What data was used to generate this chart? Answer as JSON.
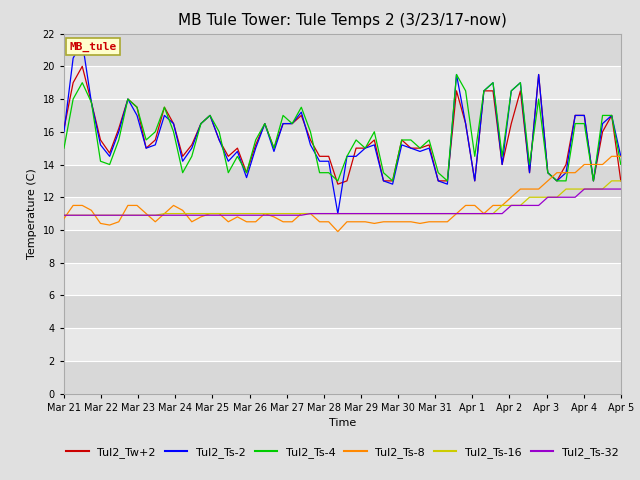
{
  "title": "MB Tule Tower: Tule Temps 2 (3/23/17-now)",
  "ylabel": "Temperature (C)",
  "xlabel": "Time",
  "ylim": [
    0,
    22
  ],
  "yticks": [
    0,
    2,
    4,
    6,
    8,
    10,
    12,
    14,
    16,
    18,
    20,
    22
  ],
  "bg_color": "#e0e0e0",
  "plot_bg_color": "#f2f2f2",
  "band_color_dark": "#d8d8d8",
  "band_color_light": "#e8e8e8",
  "series": {
    "Tul2_Tw+2": {
      "color": "#cc0000",
      "lw": 0.9,
      "values": [
        16.2,
        19.0,
        20.0,
        17.8,
        15.5,
        14.7,
        16.2,
        18.0,
        17.5,
        15.0,
        15.5,
        17.5,
        16.5,
        14.5,
        15.2,
        16.5,
        17.0,
        15.5,
        14.5,
        15.0,
        13.5,
        15.2,
        16.5,
        15.0,
        16.5,
        16.5,
        17.0,
        15.5,
        14.5,
        14.5,
        12.8,
        13.0,
        15.0,
        15.0,
        15.5,
        13.0,
        13.0,
        15.5,
        15.0,
        15.0,
        15.2,
        13.0,
        13.0,
        18.5,
        16.5,
        13.0,
        18.5,
        18.5,
        14.0,
        16.5,
        18.5,
        13.5,
        19.5,
        13.5,
        13.0,
        14.0,
        17.0,
        17.0,
        13.0,
        16.0,
        17.0,
        13.0
      ]
    },
    "Tul2_Ts-2": {
      "color": "#0000ff",
      "lw": 0.9,
      "values": [
        16.0,
        20.5,
        21.5,
        17.8,
        15.2,
        14.5,
        16.0,
        18.0,
        17.0,
        15.0,
        15.2,
        17.0,
        16.5,
        14.2,
        15.0,
        16.5,
        17.0,
        15.5,
        14.2,
        14.8,
        13.2,
        15.0,
        16.5,
        14.8,
        16.5,
        16.5,
        17.2,
        15.2,
        14.2,
        14.2,
        11.0,
        14.5,
        14.5,
        15.0,
        15.2,
        13.0,
        12.8,
        15.2,
        15.0,
        14.8,
        15.0,
        13.0,
        12.8,
        19.5,
        16.5,
        13.0,
        18.5,
        19.0,
        14.0,
        18.5,
        19.0,
        13.5,
        19.5,
        13.5,
        13.0,
        13.5,
        17.0,
        17.0,
        13.0,
        16.5,
        17.0,
        14.5
      ]
    },
    "Tul2_Ts-4": {
      "color": "#00cc00",
      "lw": 0.9,
      "values": [
        15.0,
        18.0,
        19.0,
        17.8,
        14.2,
        14.0,
        15.5,
        18.0,
        17.5,
        15.5,
        16.0,
        17.5,
        16.0,
        13.5,
        14.5,
        16.5,
        17.0,
        16.0,
        13.5,
        14.5,
        13.5,
        15.5,
        16.5,
        15.0,
        17.0,
        16.5,
        17.5,
        16.0,
        13.5,
        13.5,
        13.0,
        14.5,
        15.5,
        15.0,
        16.0,
        13.5,
        13.0,
        15.5,
        15.5,
        15.0,
        15.5,
        13.5,
        13.0,
        19.5,
        18.5,
        14.5,
        18.5,
        19.0,
        14.5,
        18.5,
        19.0,
        14.0,
        18.0,
        13.5,
        13.0,
        13.0,
        16.5,
        16.5,
        13.0,
        17.0,
        17.0,
        14.0
      ]
    },
    "Tul2_Ts-8": {
      "color": "#ff8800",
      "lw": 0.9,
      "values": [
        10.7,
        11.5,
        11.5,
        11.2,
        10.4,
        10.3,
        10.5,
        11.5,
        11.5,
        11.0,
        10.5,
        11.0,
        11.5,
        11.2,
        10.5,
        10.8,
        11.0,
        11.0,
        10.5,
        10.8,
        10.5,
        10.5,
        11.0,
        10.8,
        10.5,
        10.5,
        11.0,
        11.0,
        10.5,
        10.5,
        9.9,
        10.5,
        10.5,
        10.5,
        10.4,
        10.5,
        10.5,
        10.5,
        10.5,
        10.4,
        10.5,
        10.5,
        10.5,
        11.0,
        11.5,
        11.5,
        11.0,
        11.5,
        11.5,
        12.0,
        12.5,
        12.5,
        12.5,
        13.0,
        13.5,
        13.5,
        13.5,
        14.0,
        14.0,
        14.0,
        14.5,
        14.5
      ]
    },
    "Tul2_Ts-16": {
      "color": "#cccc00",
      "lw": 0.9,
      "values": [
        10.9,
        10.9,
        10.9,
        10.9,
        10.9,
        10.9,
        10.9,
        10.9,
        10.9,
        10.9,
        10.9,
        11.0,
        11.0,
        11.0,
        11.0,
        11.0,
        11.0,
        11.0,
        11.0,
        11.0,
        11.0,
        11.0,
        11.0,
        11.0,
        11.0,
        11.0,
        11.0,
        11.0,
        11.0,
        11.0,
        11.0,
        11.0,
        11.0,
        11.0,
        11.0,
        11.0,
        11.0,
        11.0,
        11.0,
        11.0,
        11.0,
        11.0,
        11.0,
        11.0,
        11.0,
        11.0,
        11.0,
        11.0,
        11.5,
        11.5,
        11.5,
        12.0,
        12.0,
        12.0,
        12.0,
        12.5,
        12.5,
        12.5,
        12.5,
        12.5,
        13.0,
        13.0
      ]
    },
    "Tul2_Ts-32": {
      "color": "#9900cc",
      "lw": 0.9,
      "values": [
        10.9,
        10.9,
        10.9,
        10.9,
        10.9,
        10.9,
        10.9,
        10.9,
        10.9,
        10.9,
        10.9,
        10.9,
        10.9,
        10.9,
        10.9,
        10.9,
        10.9,
        10.9,
        10.9,
        10.9,
        10.9,
        10.9,
        10.9,
        10.9,
        10.9,
        10.9,
        10.9,
        11.0,
        11.0,
        11.0,
        11.0,
        11.0,
        11.0,
        11.0,
        11.0,
        11.0,
        11.0,
        11.0,
        11.0,
        11.0,
        11.0,
        11.0,
        11.0,
        11.0,
        11.0,
        11.0,
        11.0,
        11.0,
        11.0,
        11.5,
        11.5,
        11.5,
        11.5,
        12.0,
        12.0,
        12.0,
        12.0,
        12.5,
        12.5,
        12.5,
        12.5,
        12.5
      ]
    }
  },
  "xtick_labels": [
    "Mar 21",
    "Mar 22",
    "Mar 23",
    "Mar 24",
    "Mar 25",
    "Mar 26",
    "Mar 27",
    "Mar 28",
    "Mar 29",
    "Mar 30",
    "Mar 31",
    "Apr 1",
    "Apr 2",
    "Apr 3",
    "Apr 4",
    "Apr 5"
  ],
  "annotation_text": "MB_tule",
  "annotation_color": "#cc0000",
  "annotation_bg": "#ffffcc",
  "annotation_border": "#aaa830",
  "title_fontsize": 11,
  "label_fontsize": 8,
  "tick_fontsize": 7,
  "legend_fontsize": 8
}
